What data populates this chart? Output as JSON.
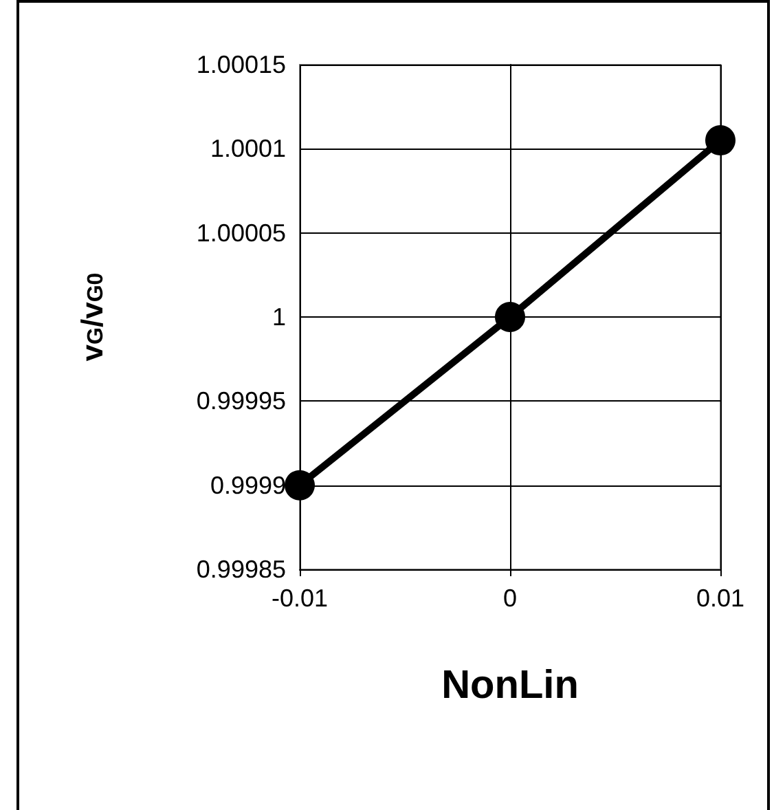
{
  "chart_data": {
    "type": "line",
    "xlabel": "NonLin",
    "ylabel": "v$_{G}$/v$_{G0}$",
    "x": [
      -0.01,
      0,
      0.01
    ],
    "series": [
      {
        "color": "#000000",
        "values": [
          0.9999,
          1,
          1.000105
        ]
      }
    ],
    "xlim": [
      -0.01,
      0.01
    ],
    "xticks": [
      -0.01,
      0,
      0.01
    ],
    "ylim": [
      0.99985,
      1.00015
    ],
    "yticks": [
      0.99985,
      0.9999,
      0.99995,
      1,
      1.00005,
      1.0001,
      1.00015
    ],
    "grid": true,
    "marker": "circle",
    "line_style": "solid"
  }
}
